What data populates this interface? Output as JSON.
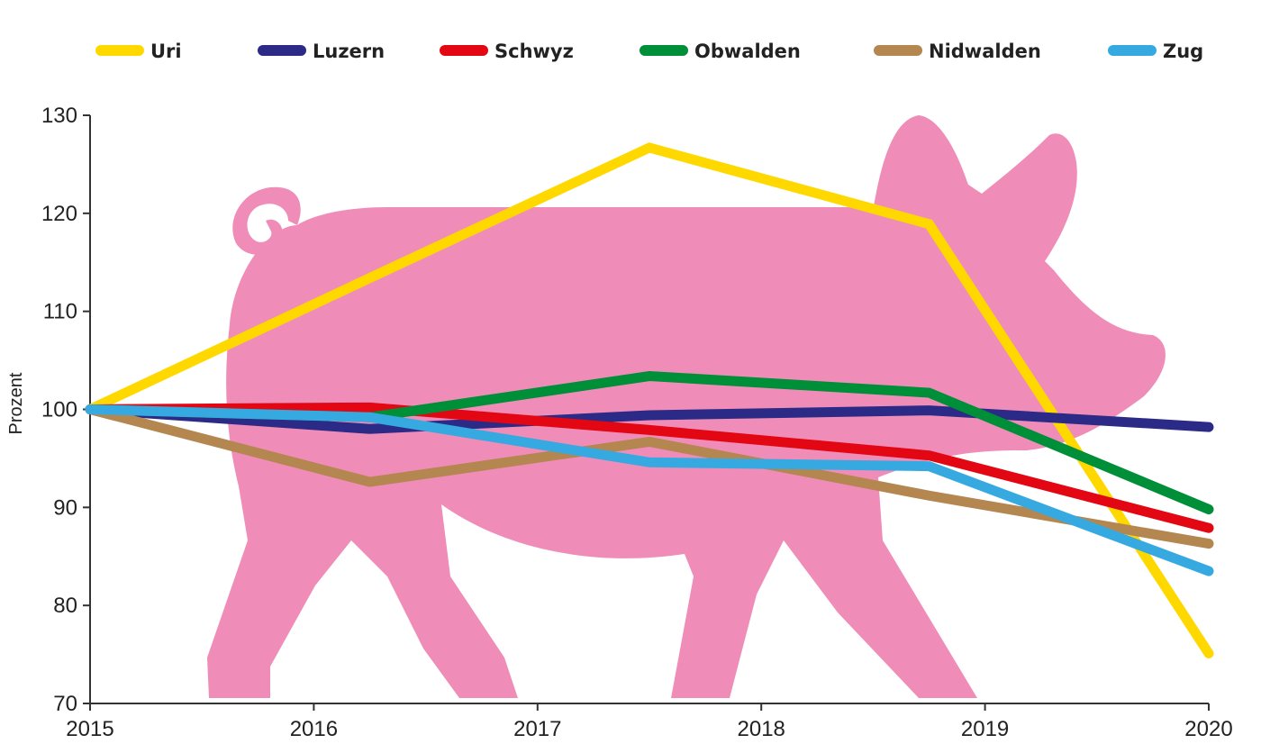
{
  "chart_data": {
    "type": "line",
    "title": "",
    "xlabel": "",
    "ylabel": "Prozent",
    "x_ticks": [
      "2015",
      "2016",
      "2017",
      "2018",
      "2019",
      "2020"
    ],
    "y_ticks": [
      70,
      80,
      90,
      100,
      110,
      120,
      130
    ],
    "xlim": [
      2015,
      2020
    ],
    "ylim": [
      70,
      130
    ],
    "grid": false,
    "legend_position": "top",
    "background_image": "pig-silhouette",
    "background_color": "#f08cb8",
    "x": [
      2015,
      2016.25,
      2017.5,
      2018.75,
      2020
    ],
    "series": [
      {
        "name": "Uri",
        "color": "#ffd800",
        "values": [
          100,
          113.4,
          126.7,
          118.9,
          75.1
        ]
      },
      {
        "name": "Luzern",
        "color": "#2b2a86",
        "values": [
          100,
          98.0,
          99.4,
          99.9,
          98.2
        ]
      },
      {
        "name": "Schwyz",
        "color": "#e30613",
        "values": [
          100,
          100.2,
          97.9,
          95.3,
          87.9
        ]
      },
      {
        "name": "Obwalden",
        "color": "#008f39",
        "values": [
          100,
          99.2,
          103.4,
          101.7,
          89.8
        ]
      },
      {
        "name": "Nidwalden",
        "color": "#b48650",
        "values": [
          100,
          92.6,
          96.7,
          91.2,
          86.3
        ]
      },
      {
        "name": "Zug",
        "color": "#36a9e1",
        "values": [
          100,
          99.2,
          94.6,
          94.2,
          83.5
        ]
      }
    ]
  }
}
